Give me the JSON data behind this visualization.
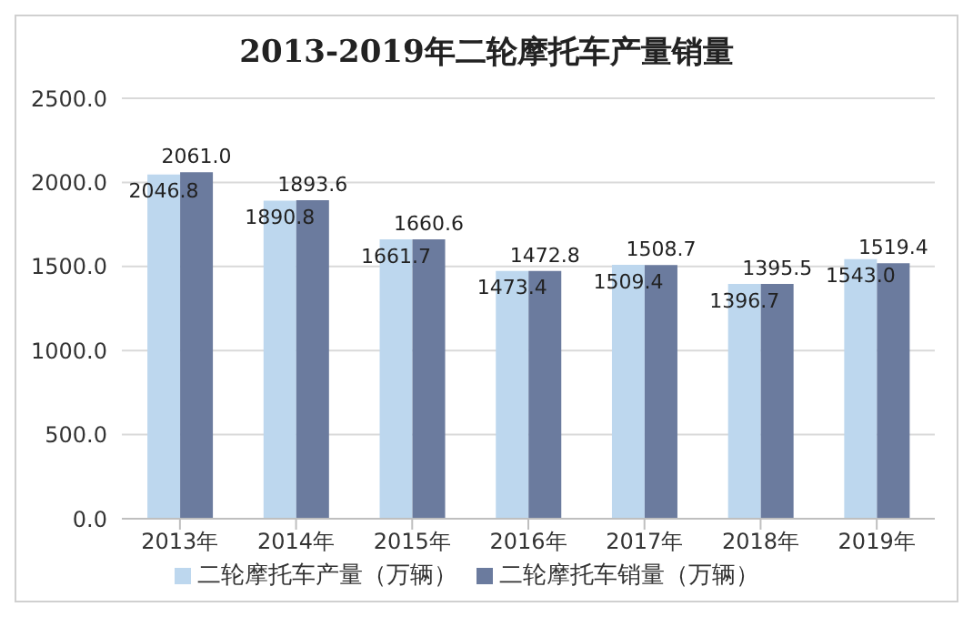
{
  "chart_data": {
    "type": "bar",
    "title": "2013-2019年二轮摩托车产量销量",
    "categories": [
      "2013年",
      "2014年",
      "2015年",
      "2016年",
      "2017年",
      "2018年",
      "2019年"
    ],
    "series": [
      {
        "name": "二轮摩托车产量（万辆）",
        "color": "#bdd7ee",
        "values": [
          2046.8,
          1890.8,
          1661.7,
          1473.4,
          1509.4,
          1396.7,
          1543
        ],
        "value_labels": [
          "2046.8",
          "1890.8",
          "1661.7",
          "1473.4",
          "1509.4",
          "1396.7",
          "1543.0"
        ]
      },
      {
        "name": "二轮摩托车销量（万辆）",
        "color": "#6b7b9e",
        "values": [
          2061,
          1893.6,
          1660.6,
          1472.8,
          1508.7,
          1395.5,
          1519.4
        ],
        "value_labels": [
          "2061.0",
          "1893.6",
          "1660.6",
          "1472.8",
          "1508.7",
          "1395.5",
          "1519.4"
        ]
      }
    ],
    "ylim": [
      0,
      2500
    ],
    "yticks": [
      {
        "value": 0,
        "label": "0.0"
      },
      {
        "value": 500,
        "label": "500.0"
      },
      {
        "value": 1000,
        "label": "1000.0"
      },
      {
        "value": 1500,
        "label": "1500.0"
      },
      {
        "value": 2000,
        "label": "2000.0"
      },
      {
        "value": 2500,
        "label": "2500.0"
      }
    ],
    "grid": "y",
    "legend": "bottom"
  }
}
